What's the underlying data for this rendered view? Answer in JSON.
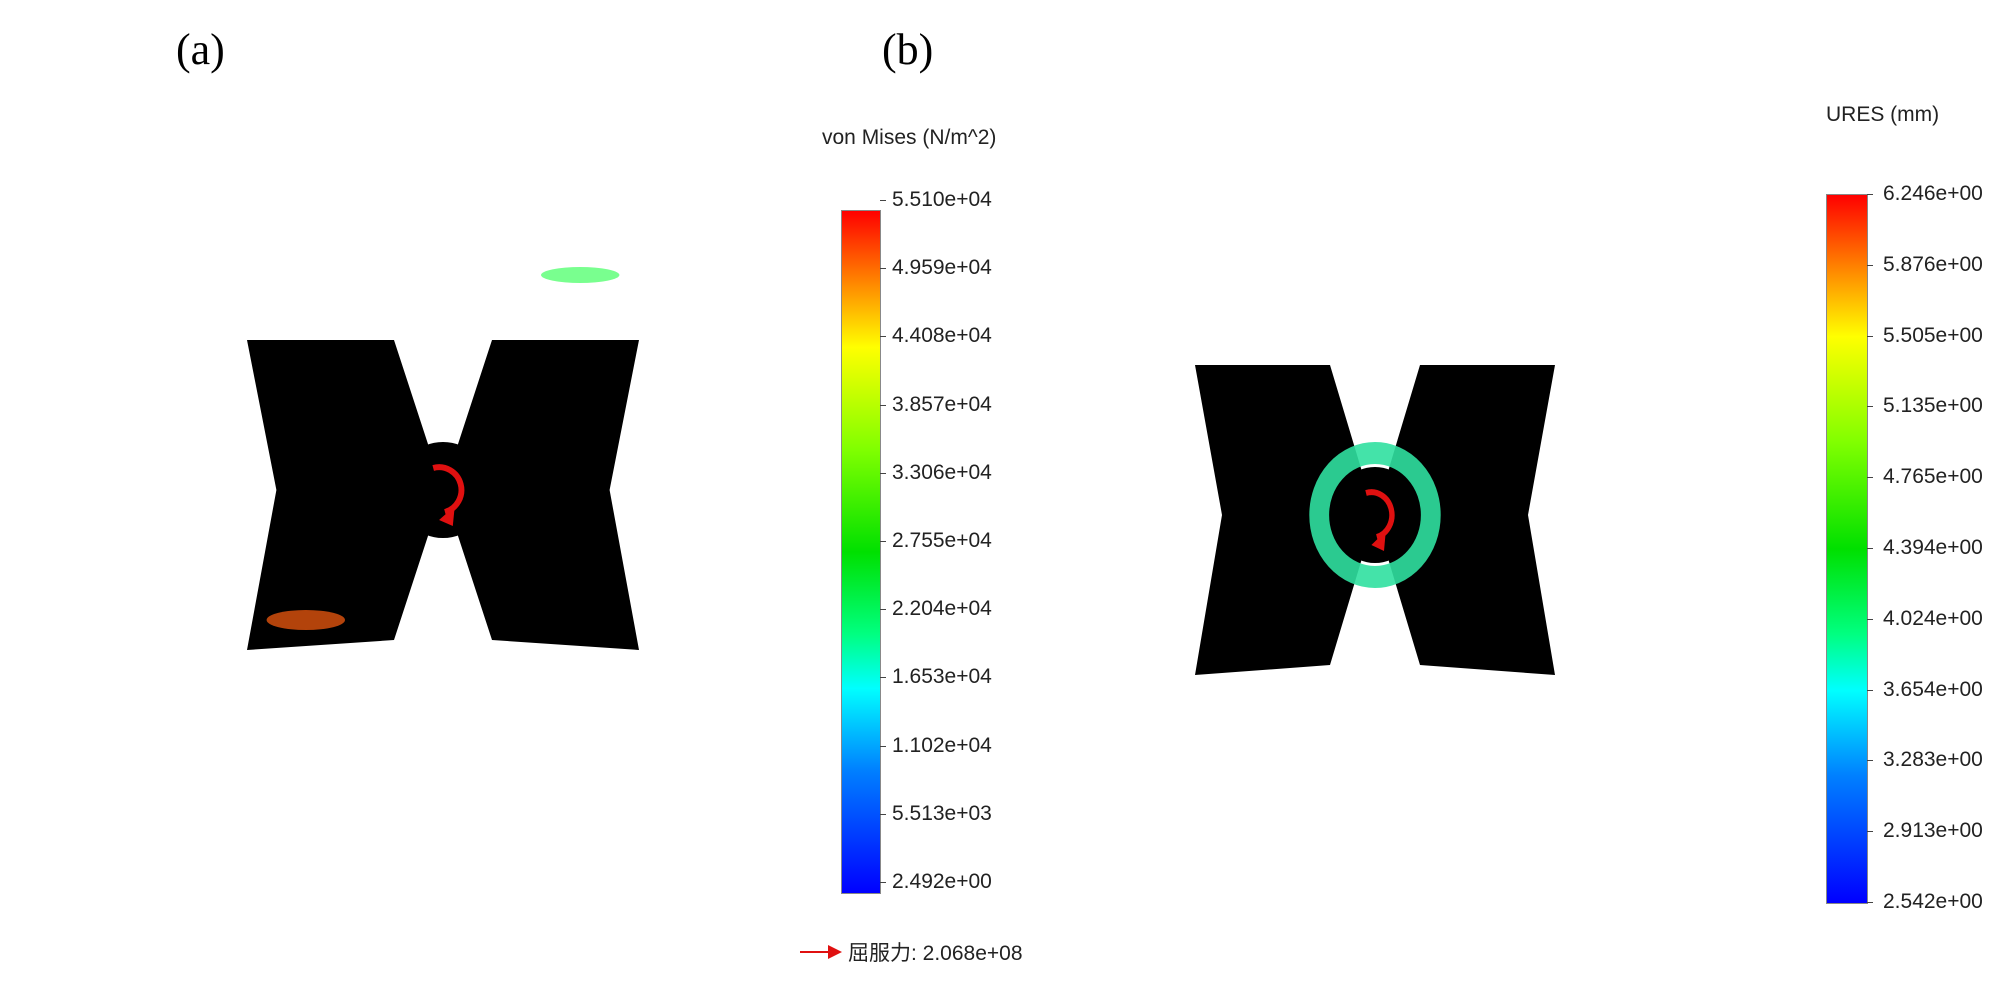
{
  "panels": [
    {
      "label": "(a)",
      "legend_title": "von Mises (N/m^2)",
      "ticks": [
        "5.510e+04",
        "4.959e+04",
        "4.408e+04",
        "3.857e+04",
        "3.306e+04",
        "2.755e+04",
        "2.204e+04",
        "1.653e+04",
        "1.102e+04",
        "5.513e+03",
        "2.492e+00"
      ],
      "yield_label": "屈服力: 2.068e+08",
      "model_color": "#1030e8",
      "model_edge": "#0a1aa0"
    },
    {
      "label": "(b)",
      "legend_title": "URES (mm)",
      "ticks": [
        "6.246e+00",
        "5.876e+00",
        "5.505e+00",
        "5.135e+00",
        "4.765e+00",
        "4.394e+00",
        "4.024e+00",
        "3.654e+00",
        "3.283e+00",
        "2.913e+00",
        "2.542e+00"
      ],
      "model_color": "#e8160e",
      "model_edge": "#a30808"
    }
  ],
  "colormap": [
    "#ff0000",
    "#ff8000",
    "#ffff00",
    "#80ff00",
    "#00e000",
    "#00ff80",
    "#00ffff",
    "#0080ff",
    "#0000ff"
  ],
  "rotation_arrow_color": "#e01010"
}
